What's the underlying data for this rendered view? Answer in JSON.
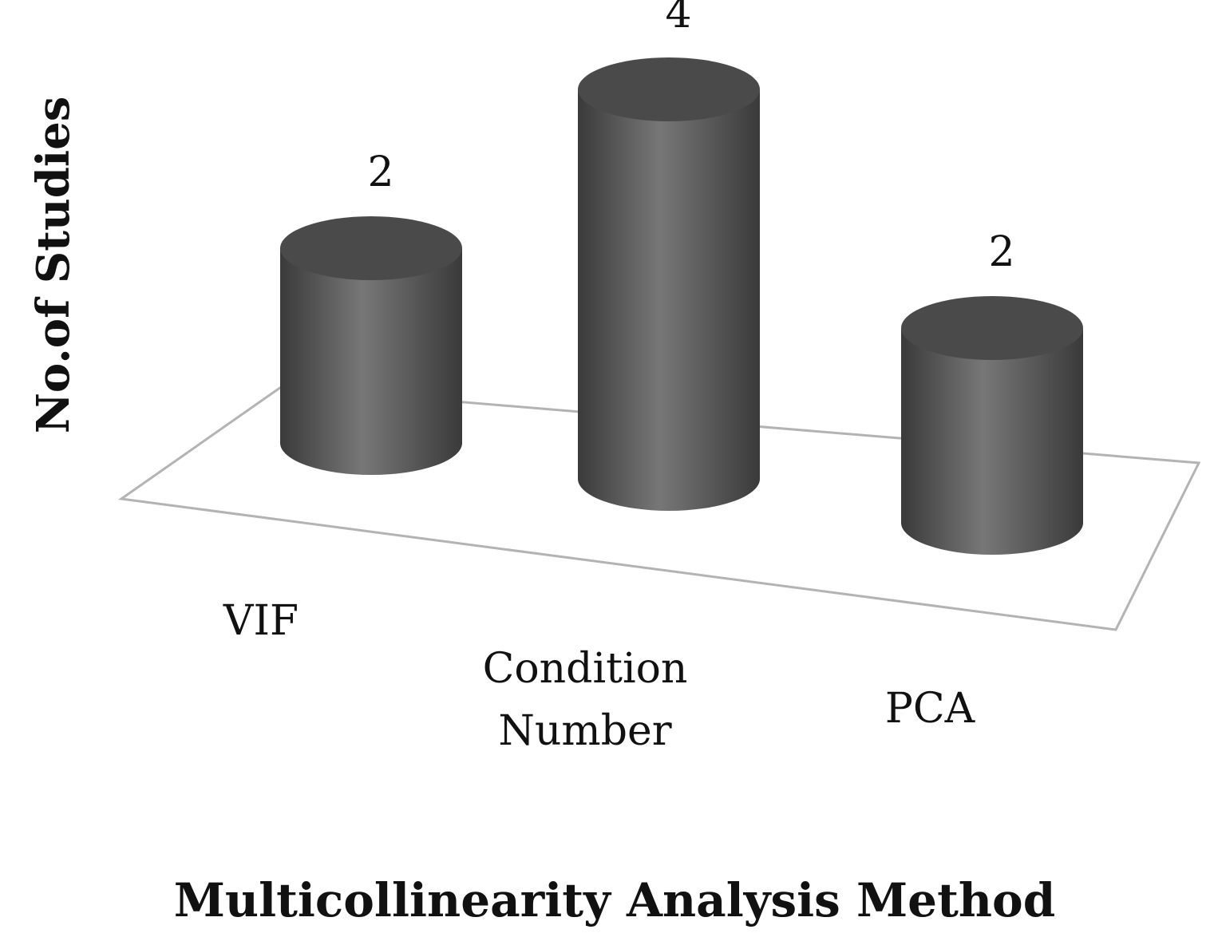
{
  "chart_data": {
    "type": "bar",
    "style": "3d-cylinder",
    "categories": [
      [
        "VIF"
      ],
      [
        "Condition",
        "Number"
      ],
      [
        "PCA"
      ]
    ],
    "values": [
      2,
      4,
      2
    ],
    "data_labels": [
      "2",
      "4",
      "2"
    ],
    "xlabel": "Multicollinearity Analysis Method",
    "ylabel": "No.of Studies",
    "grid": false,
    "legend": "none",
    "colors": {
      "bar_dark": "#3a3a3a",
      "bar_light": "#777777",
      "bar_top": "#4a4a4a",
      "floor_stroke": "#b3b3b3"
    }
  }
}
